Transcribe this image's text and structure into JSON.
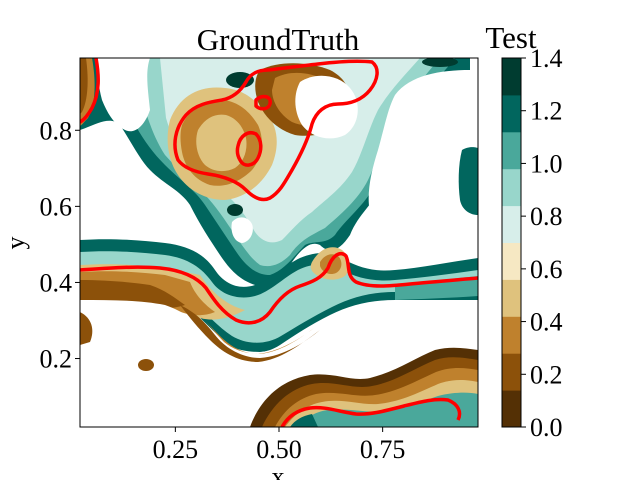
{
  "chart_data": {
    "type": "contour",
    "title": "GroundTruth",
    "xlabel": "x",
    "ylabel": "y",
    "xlim": [
      0.02,
      0.98
    ],
    "ylim": [
      0.02,
      0.99
    ],
    "xticks": [
      0.25,
      0.5,
      0.75
    ],
    "xtick_labels": [
      "0.25",
      "0.50",
      "0.75"
    ],
    "yticks": [
      0.2,
      0.4,
      0.6,
      0.8
    ],
    "ytick_labels": [
      "0.2",
      "0.4",
      "0.6",
      "0.8"
    ],
    "colorbar": {
      "label": "Test",
      "levels": [
        0.0,
        0.14,
        0.28,
        0.42,
        0.56,
        0.7,
        0.84,
        0.98,
        1.12,
        1.26,
        1.4
      ],
      "colors": [
        "#543005",
        "#8c510a",
        "#bf812d",
        "#dfc27d",
        "#f6e8c3",
        "#d7eeea",
        "#98d6cb",
        "#4aa89b",
        "#01665e",
        "#003c30"
      ],
      "ticks": [
        0.0,
        0.2,
        0.4,
        0.6,
        0.8,
        1.0,
        1.2,
        1.4
      ],
      "tick_labels": [
        "0.0",
        "0.2",
        "0.4",
        "0.6",
        "0.8",
        "1.0",
        "1.2",
        "1.4"
      ]
    },
    "highlight_contour_color": "#ff0000",
    "background_color": "#ffffff"
  }
}
